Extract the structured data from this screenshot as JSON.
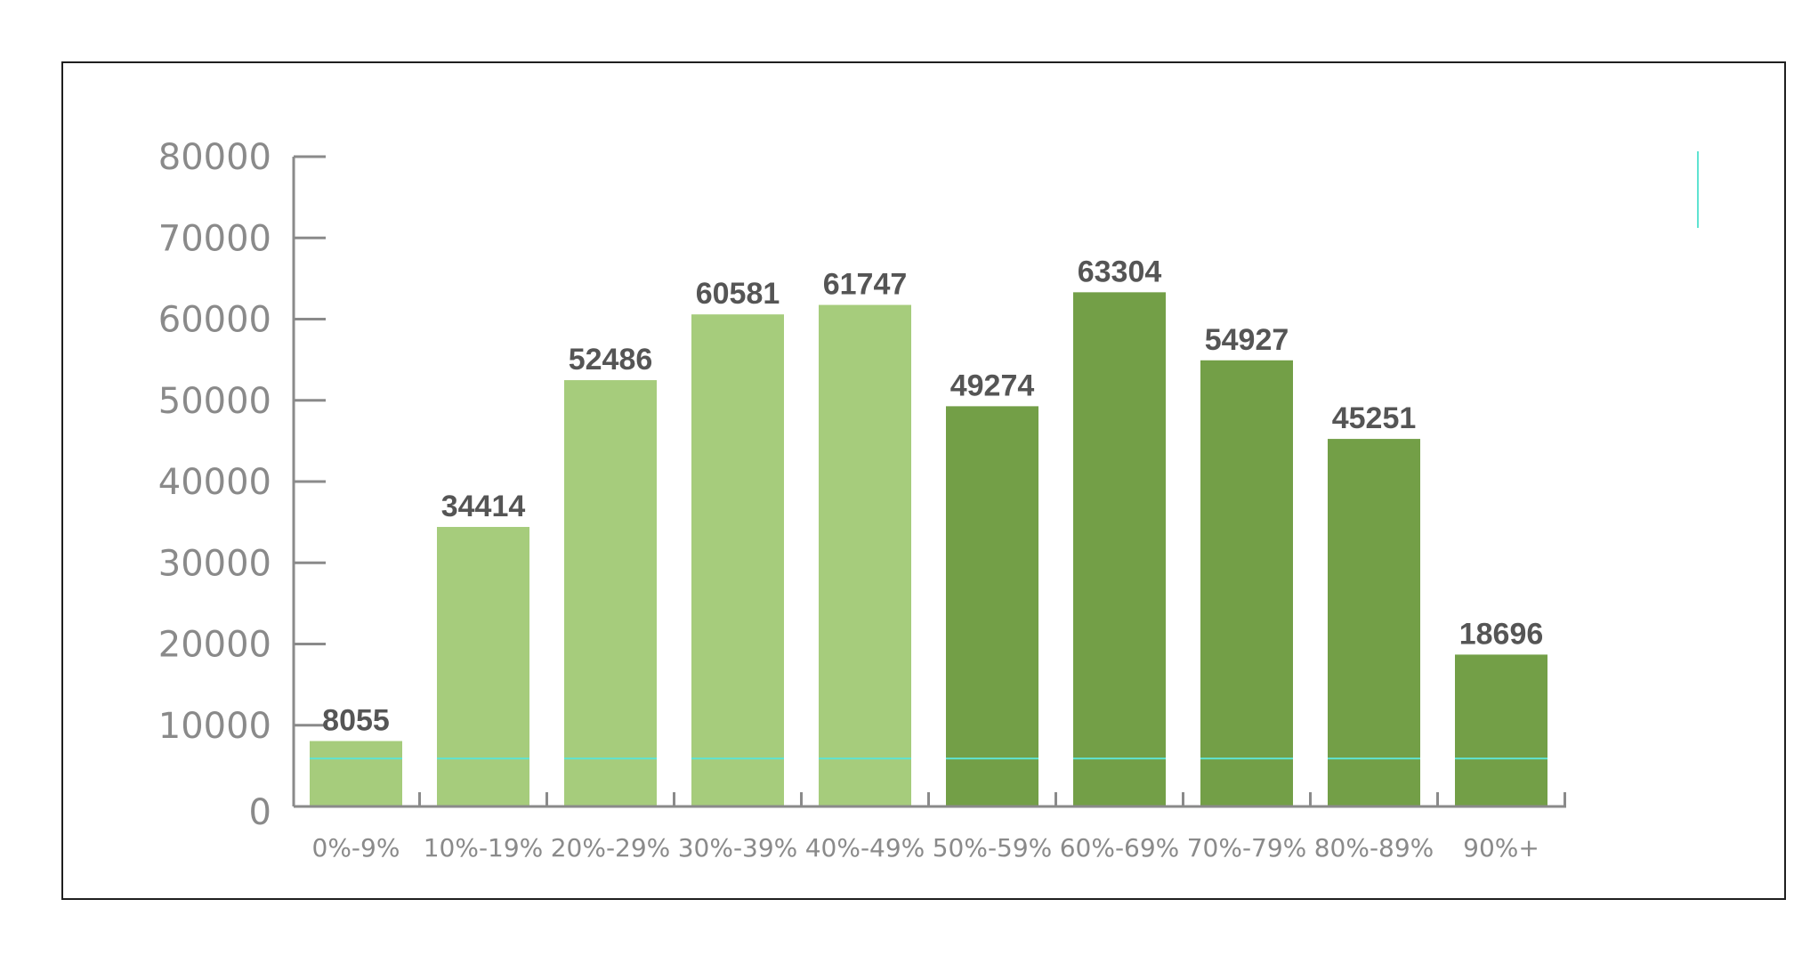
{
  "chart_data": {
    "type": "bar",
    "categories": [
      "0%-9%",
      "10%-19%",
      "20%-29%",
      "30%-39%",
      "40%-49%",
      "50%-59%",
      "60%-69%",
      "70%-79%",
      "80%-89%",
      "90%+"
    ],
    "values": [
      8055,
      34414,
      52486,
      60581,
      61747,
      49274,
      63304,
      54927,
      45251,
      18696
    ],
    "data_labels": [
      "8055",
      "34414",
      "52486",
      "60581",
      "61747",
      "49274",
      "63304",
      "54927",
      "45251",
      "18696"
    ],
    "bar_colors": [
      "#a6cc7c",
      "#a6cc7c",
      "#a6cc7c",
      "#a6cc7c",
      "#a6cc7c",
      "#739f47",
      "#739f47",
      "#739f47",
      "#739f47",
      "#739f47"
    ],
    "y_ticks": [
      0,
      10000,
      20000,
      30000,
      40000,
      50000,
      60000,
      70000,
      80000
    ],
    "y_tick_labels": [
      "0",
      "10000",
      "20000",
      "30000",
      "40000",
      "50000",
      "60000",
      "70000",
      "80000"
    ],
    "ylim": [
      0,
      80000
    ],
    "reference_line_value": 5900,
    "title": "",
    "xlabel": "",
    "ylabel": "",
    "grid": false,
    "legend": "none",
    "colors": {
      "light_bar": "#a6cc7c",
      "dark_bar": "#739f47",
      "axis": "#8a8a8a",
      "label_text": "#555555",
      "reference_line": "#5fe3d2"
    }
  }
}
